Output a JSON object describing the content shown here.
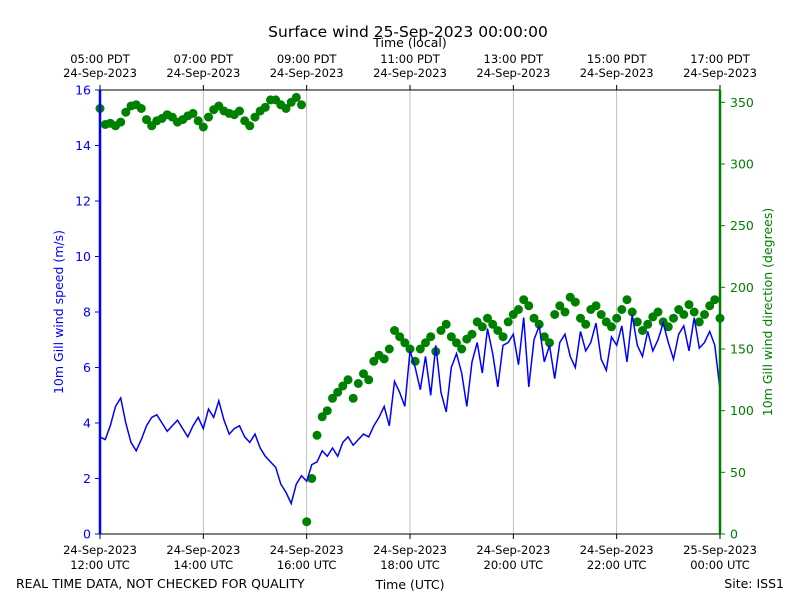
{
  "chart_data": {
    "type": "line",
    "title": "Surface wind 25-Sep-2023 00:00:00",
    "top_axis_label": "Time (local)",
    "bottom_axis_label": "Time (UTC)",
    "footer_left": "REAL TIME DATA, NOT CHECKED FOR QUALITY",
    "footer_right": "Site: ISS1",
    "x_range_utc_hours": [
      12,
      24
    ],
    "x_ticks_utc": [
      {
        "x": 12,
        "line1": "24-Sep-2023",
        "line2": "12:00 UTC"
      },
      {
        "x": 14,
        "line1": "24-Sep-2023",
        "line2": "14:00 UTC"
      },
      {
        "x": 16,
        "line1": "24-Sep-2023",
        "line2": "16:00 UTC"
      },
      {
        "x": 18,
        "line1": "24-Sep-2023",
        "line2": "18:00 UTC"
      },
      {
        "x": 20,
        "line1": "24-Sep-2023",
        "line2": "20:00 UTC"
      },
      {
        "x": 22,
        "line1": "24-Sep-2023",
        "line2": "22:00 UTC"
      },
      {
        "x": 24,
        "line1": "25-Sep-2023",
        "line2": "00:00 UTC"
      }
    ],
    "x_ticks_local": [
      {
        "x": 12,
        "line1": "05:00 PDT",
        "line2": "24-Sep-2023"
      },
      {
        "x": 14,
        "line1": "07:00 PDT",
        "line2": "24-Sep-2023"
      },
      {
        "x": 16,
        "line1": "09:00 PDT",
        "line2": "24-Sep-2023"
      },
      {
        "x": 18,
        "line1": "11:00 PDT",
        "line2": "24-Sep-2023"
      },
      {
        "x": 20,
        "line1": "13:00 PDT",
        "line2": "24-Sep-2023"
      },
      {
        "x": 22,
        "line1": "15:00 PDT",
        "line2": "24-Sep-2023"
      },
      {
        "x": 24,
        "line1": "17:00 PDT",
        "line2": "24-Sep-2023"
      }
    ],
    "y_left": {
      "label": "10m Gill wind speed (m/s)",
      "range": [
        0,
        16
      ],
      "ticks": [
        0,
        2,
        4,
        6,
        8,
        10,
        12,
        14,
        16
      ]
    },
    "y_right": {
      "label": "10m Gill wind direction (degrees)",
      "range": [
        0,
        360
      ],
      "ticks": [
        0,
        50,
        100,
        150,
        200,
        250,
        300,
        350
      ]
    },
    "series": [
      {
        "name": "10m Gill wind speed",
        "axis": "left",
        "style": "line",
        "color": "#0000ff",
        "x": [
          12.0,
          12.1,
          12.2,
          12.3,
          12.4,
          12.5,
          12.6,
          12.7,
          12.8,
          12.9,
          13.0,
          13.1,
          13.2,
          13.3,
          13.4,
          13.5,
          13.6,
          13.7,
          13.8,
          13.9,
          14.0,
          14.1,
          14.2,
          14.3,
          14.4,
          14.5,
          14.6,
          14.7,
          14.8,
          14.9,
          15.0,
          15.1,
          15.2,
          15.3,
          15.4,
          15.5,
          15.6,
          15.7,
          15.8,
          15.9,
          16.0,
          16.1,
          16.2,
          16.3,
          16.4,
          16.5,
          16.6,
          16.7,
          16.8,
          16.9,
          17.0,
          17.1,
          17.2,
          17.3,
          17.4,
          17.5,
          17.6,
          17.7,
          17.8,
          17.9,
          18.0,
          18.1,
          18.2,
          18.3,
          18.4,
          18.5,
          18.6,
          18.7,
          18.8,
          18.9,
          19.0,
          19.1,
          19.2,
          19.3,
          19.4,
          19.5,
          19.6,
          19.7,
          19.8,
          19.9,
          20.0,
          20.1,
          20.2,
          20.3,
          20.4,
          20.5,
          20.6,
          20.7,
          20.8,
          20.9,
          21.0,
          21.1,
          21.2,
          21.3,
          21.4,
          21.5,
          21.6,
          21.7,
          21.8,
          21.9,
          22.0,
          22.1,
          22.2,
          22.3,
          22.4,
          22.5,
          22.6,
          22.7,
          22.8,
          22.9,
          23.0,
          23.1,
          23.2,
          23.3,
          23.4,
          23.5,
          23.6,
          23.7,
          23.8,
          23.9,
          24.0
        ],
        "values": [
          3.5,
          3.4,
          3.9,
          4.6,
          4.9,
          4.0,
          3.3,
          3.0,
          3.4,
          3.9,
          4.2,
          4.3,
          4.0,
          3.7,
          3.9,
          4.1,
          3.8,
          3.5,
          3.9,
          4.2,
          3.8,
          4.5,
          4.2,
          4.8,
          4.1,
          3.6,
          3.8,
          3.9,
          3.5,
          3.3,
          3.6,
          3.1,
          2.8,
          2.6,
          2.4,
          1.8,
          1.5,
          1.1,
          1.8,
          2.1,
          1.9,
          2.5,
          2.6,
          3.0,
          2.8,
          3.1,
          2.8,
          3.3,
          3.5,
          3.2,
          3.4,
          3.6,
          3.5,
          3.9,
          4.2,
          4.6,
          3.9,
          5.5,
          5.1,
          4.6,
          6.6,
          6.0,
          5.2,
          6.4,
          5.0,
          6.8,
          5.1,
          4.4,
          6.0,
          6.5,
          5.8,
          4.6,
          6.2,
          6.9,
          5.8,
          7.4,
          6.5,
          5.3,
          6.8,
          6.9,
          7.2,
          6.1,
          7.8,
          5.3,
          7.0,
          7.5,
          6.2,
          6.8,
          5.6,
          6.9,
          7.2,
          6.4,
          6.0,
          7.3,
          6.6,
          6.9,
          7.6,
          6.3,
          5.9,
          7.1,
          6.8,
          7.5,
          6.2,
          7.9,
          6.8,
          6.4,
          7.3,
          6.6,
          7.0,
          7.6,
          6.9,
          6.3,
          7.2,
          7.5,
          6.6,
          7.8,
          6.7,
          6.9,
          7.3,
          6.8,
          5.2
        ]
      },
      {
        "name": "10m Gill wind direction",
        "axis": "right",
        "style": "markers",
        "color": "#008000",
        "x": [
          12.0,
          12.1,
          12.2,
          12.3,
          12.4,
          12.5,
          12.6,
          12.7,
          12.8,
          12.9,
          13.0,
          13.1,
          13.2,
          13.3,
          13.4,
          13.5,
          13.6,
          13.7,
          13.8,
          13.9,
          14.0,
          14.1,
          14.2,
          14.3,
          14.4,
          14.5,
          14.6,
          14.7,
          14.8,
          14.9,
          15.0,
          15.1,
          15.2,
          15.3,
          15.4,
          15.5,
          15.6,
          15.7,
          15.8,
          15.9,
          16.0,
          16.1,
          16.2,
          16.3,
          16.4,
          16.5,
          16.6,
          16.7,
          16.8,
          16.9,
          17.0,
          17.1,
          17.2,
          17.3,
          17.4,
          17.5,
          17.6,
          17.7,
          17.8,
          17.9,
          18.0,
          18.1,
          18.2,
          18.3,
          18.4,
          18.5,
          18.6,
          18.7,
          18.8,
          18.9,
          19.0,
          19.1,
          19.2,
          19.3,
          19.4,
          19.5,
          19.6,
          19.7,
          19.8,
          19.9,
          20.0,
          20.1,
          20.2,
          20.3,
          20.4,
          20.5,
          20.6,
          20.7,
          20.8,
          20.9,
          21.0,
          21.1,
          21.2,
          21.3,
          21.4,
          21.5,
          21.6,
          21.7,
          21.8,
          21.9,
          22.0,
          22.1,
          22.2,
          22.3,
          22.4,
          22.5,
          22.6,
          22.7,
          22.8,
          22.9,
          23.0,
          23.1,
          23.2,
          23.3,
          23.4,
          23.5,
          23.6,
          23.7,
          23.8,
          23.9,
          24.0
        ],
        "values": [
          345,
          332,
          333,
          331,
          334,
          342,
          347,
          348,
          345,
          336,
          331,
          335,
          337,
          340,
          338,
          334,
          336,
          339,
          341,
          335,
          330,
          338,
          344,
          347,
          343,
          341,
          340,
          343,
          335,
          331,
          338,
          343,
          346,
          352,
          352,
          348,
          345,
          350,
          354,
          348,
          10,
          45,
          80,
          95,
          100,
          110,
          115,
          120,
          125,
          110,
          122,
          130,
          125,
          140,
          145,
          142,
          150,
          165,
          160,
          155,
          150,
          140,
          150,
          155,
          160,
          148,
          165,
          170,
          160,
          155,
          150,
          158,
          162,
          172,
          168,
          175,
          170,
          165,
          160,
          172,
          178,
          182,
          190,
          185,
          175,
          170,
          160,
          155,
          178,
          185,
          180,
          192,
          188,
          175,
          170,
          182,
          185,
          178,
          172,
          168,
          175,
          182,
          190,
          180,
          172,
          165,
          170,
          176,
          180,
          172,
          168,
          175,
          182,
          178,
          186,
          180,
          172,
          178,
          185,
          190,
          175
        ]
      }
    ]
  }
}
